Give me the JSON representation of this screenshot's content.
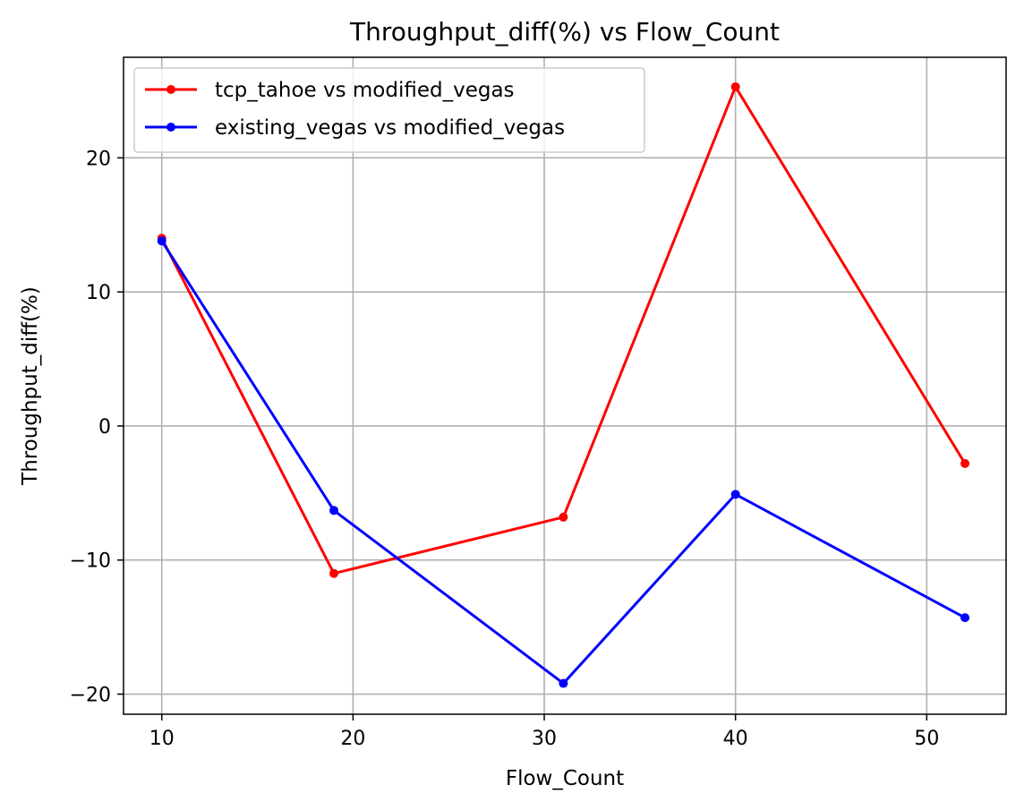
{
  "chart_data": {
    "type": "line",
    "title": "Throughput_diff(%) vs Flow_Count",
    "xlabel": "Flow_Count",
    "ylabel": "Throughput_diff(%)",
    "x": [
      10,
      19,
      31,
      40,
      52
    ],
    "series": [
      {
        "name": "tcp_tahoe vs modified_vegas",
        "color": "#ff0000",
        "values": [
          14.0,
          -11.0,
          -6.8,
          25.3,
          -2.8
        ]
      },
      {
        "name": "existing_vegas vs modified_vegas",
        "color": "#0000ff",
        "values": [
          13.8,
          -6.3,
          -19.2,
          -5.1,
          -14.3
        ]
      }
    ],
    "xlim": [
      8,
      54.15
    ],
    "ylim": [
      -21.5,
      27.5
    ],
    "xticks": [
      10,
      20,
      30,
      40,
      50
    ],
    "yticks": [
      -20,
      -10,
      0,
      10,
      20
    ],
    "xtick_labels": [
      "10",
      "20",
      "30",
      "40",
      "50"
    ],
    "ytick_labels": [
      "−20",
      "−10",
      "0",
      "10",
      "20"
    ],
    "grid": true,
    "legend_position": "top-left",
    "marker": "circle"
  }
}
